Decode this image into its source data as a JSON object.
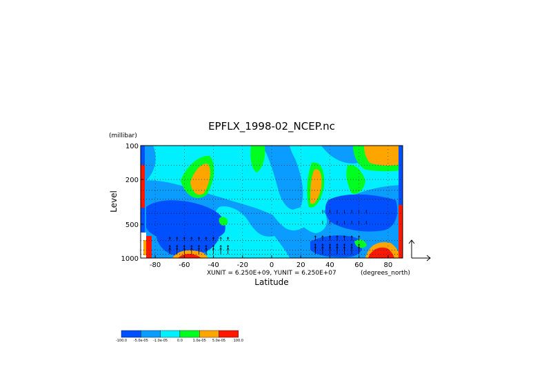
{
  "chart_data": {
    "type": "heatmap",
    "title": "EPFLX_1998-02_NCEP.nc",
    "xlabel": "Latitude",
    "ylabel": "Level",
    "yunit": "(millibar)",
    "xunit": "(degrees_north)",
    "scale_note": "XUNIT = 6.250E+09, YUNIT = 6.250E+07",
    "x_ticks": [
      "-80",
      "-60",
      "-40",
      "-20",
      "0",
      "20",
      "40",
      "60",
      "80"
    ],
    "x_tick_values": [
      -80,
      -60,
      -40,
      -20,
      0,
      20,
      40,
      60,
      80
    ],
    "xlim": [
      -90,
      90
    ],
    "y_ticks": [
      "100",
      "200",
      "500",
      "1000"
    ],
    "y_tick_values": [
      100,
      200,
      500,
      1000
    ],
    "ylim": [
      1000,
      100
    ],
    "y_scale": "log",
    "grid": true,
    "colorbar": {
      "colors": [
        "#0050ff",
        "#0a9cff",
        "#00f0ff",
        "#00ff20",
        "#ffa500",
        "#ff1800"
      ],
      "labels": [
        "-100.0",
        "-5.0e-05",
        "-1.0e-05",
        "0.0",
        "1.0e-05",
        "5.0e-05",
        "100.0"
      ]
    }
  }
}
